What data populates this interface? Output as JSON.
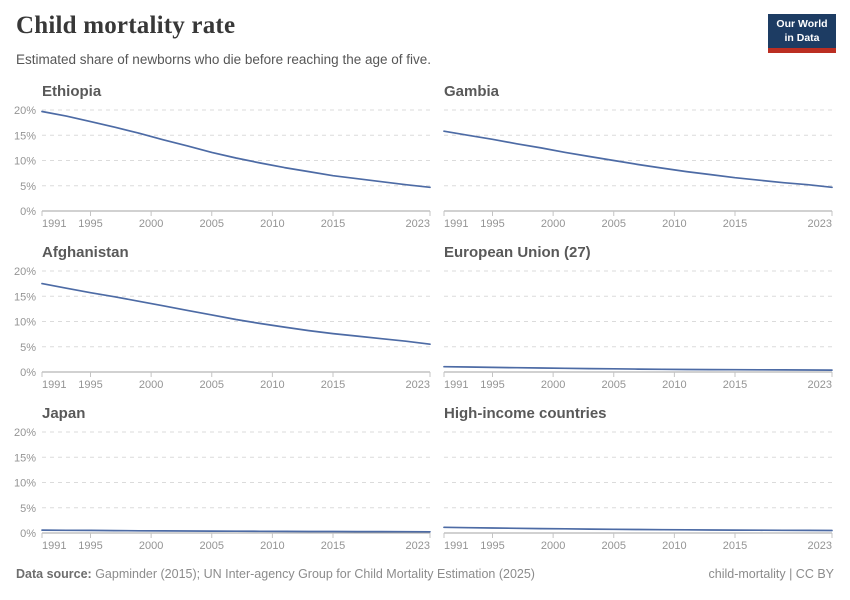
{
  "header": {
    "title": "Child mortality rate",
    "subtitle": "Estimated share of newborns who die before reaching the age of five.",
    "logo": {
      "line1": "Our World",
      "line2": "in Data",
      "bg_color": "#1d3c63",
      "accent_color": "#bb2e22"
    }
  },
  "footer": {
    "source_label": "Data source:",
    "source_text": " Gapminder (2015); UN Inter-agency Group for Child Mortality Estimation (2025)",
    "right_text": "child-mortality | CC BY"
  },
  "style": {
    "line_color": "#4d6ba5",
    "grid_color": "#dbdbdb",
    "axis_color": "#a3a3a3",
    "tick_label_color": "#949494",
    "panel_title_color": "#595959"
  },
  "chart_data": [
    {
      "type": "line",
      "title": "Ethiopia",
      "unit": "%",
      "show_y_labels": true,
      "ylim": [
        0,
        20
      ],
      "yticks": [
        0,
        5,
        10,
        15,
        20
      ],
      "xticks": [
        1991,
        1995,
        2000,
        2005,
        2010,
        2015,
        2023
      ],
      "x": [
        1991,
        1993,
        1995,
        1997,
        1999,
        2001,
        2003,
        2005,
        2007,
        2009,
        2011,
        2013,
        2015,
        2017,
        2019,
        2021,
        2023
      ],
      "values": [
        19.7,
        18.8,
        17.7,
        16.6,
        15.4,
        14.1,
        12.9,
        11.6,
        10.5,
        9.5,
        8.6,
        7.8,
        7.0,
        6.4,
        5.8,
        5.2,
        4.7
      ]
    },
    {
      "type": "line",
      "title": "Gambia",
      "unit": "%",
      "show_y_labels": false,
      "ylim": [
        0,
        20
      ],
      "yticks": [
        0,
        5,
        10,
        15,
        20
      ],
      "xticks": [
        1991,
        1995,
        2000,
        2005,
        2010,
        2015,
        2023
      ],
      "x": [
        1991,
        1993,
        1995,
        1997,
        1999,
        2001,
        2003,
        2005,
        2007,
        2009,
        2011,
        2013,
        2015,
        2017,
        2019,
        2021,
        2023
      ],
      "values": [
        15.8,
        15.0,
        14.2,
        13.3,
        12.5,
        11.6,
        10.8,
        10.0,
        9.2,
        8.5,
        7.8,
        7.2,
        6.6,
        6.1,
        5.6,
        5.2,
        4.7
      ]
    },
    {
      "type": "line",
      "title": "Afghanistan",
      "unit": "%",
      "show_y_labels": true,
      "ylim": [
        0,
        20
      ],
      "yticks": [
        0,
        5,
        10,
        15,
        20
      ],
      "xticks": [
        1991,
        1995,
        2000,
        2005,
        2010,
        2015,
        2023
      ],
      "x": [
        1991,
        1993,
        1995,
        1997,
        1999,
        2001,
        2003,
        2005,
        2007,
        2009,
        2011,
        2013,
        2015,
        2017,
        2019,
        2021,
        2023
      ],
      "values": [
        17.5,
        16.6,
        15.7,
        14.9,
        14.0,
        13.1,
        12.2,
        11.3,
        10.4,
        9.6,
        8.9,
        8.2,
        7.6,
        7.1,
        6.6,
        6.1,
        5.5
      ]
    },
    {
      "type": "line",
      "title": "European Union (27)",
      "unit": "%",
      "show_y_labels": false,
      "ylim": [
        0,
        20
      ],
      "yticks": [
        0,
        5,
        10,
        15,
        20
      ],
      "xticks": [
        1991,
        1995,
        2000,
        2005,
        2010,
        2015,
        2023
      ],
      "x": [
        1991,
        1993,
        1995,
        1997,
        1999,
        2001,
        2003,
        2005,
        2007,
        2009,
        2011,
        2013,
        2015,
        2017,
        2019,
        2021,
        2023
      ],
      "values": [
        1.05,
        1.0,
        0.92,
        0.85,
        0.79,
        0.73,
        0.68,
        0.63,
        0.58,
        0.54,
        0.5,
        0.47,
        0.45,
        0.43,
        0.41,
        0.4,
        0.38
      ]
    },
    {
      "type": "line",
      "title": "Japan",
      "unit": "%",
      "show_y_labels": true,
      "ylim": [
        0,
        20
      ],
      "yticks": [
        0,
        5,
        10,
        15,
        20
      ],
      "xticks": [
        1991,
        1995,
        2000,
        2005,
        2010,
        2015,
        2023
      ],
      "x": [
        1991,
        1993,
        1995,
        1997,
        1999,
        2001,
        2003,
        2005,
        2007,
        2009,
        2011,
        2013,
        2015,
        2017,
        2019,
        2021,
        2023
      ],
      "values": [
        0.58,
        0.54,
        0.51,
        0.47,
        0.44,
        0.42,
        0.39,
        0.37,
        0.35,
        0.33,
        0.32,
        0.3,
        0.29,
        0.28,
        0.27,
        0.26,
        0.24
      ]
    },
    {
      "type": "line",
      "title": "High-income countries",
      "unit": "%",
      "show_y_labels": false,
      "ylim": [
        0,
        20
      ],
      "yticks": [
        0,
        5,
        10,
        15,
        20
      ],
      "xticks": [
        1991,
        1995,
        2000,
        2005,
        2010,
        2015,
        2023
      ],
      "x": [
        1991,
        1993,
        1995,
        1997,
        1999,
        2001,
        2003,
        2005,
        2007,
        2009,
        2011,
        2013,
        2015,
        2017,
        2019,
        2021,
        2023
      ],
      "values": [
        1.12,
        1.05,
        0.99,
        0.93,
        0.88,
        0.83,
        0.78,
        0.74,
        0.7,
        0.66,
        0.63,
        0.6,
        0.58,
        0.56,
        0.54,
        0.52,
        0.5
      ]
    }
  ]
}
